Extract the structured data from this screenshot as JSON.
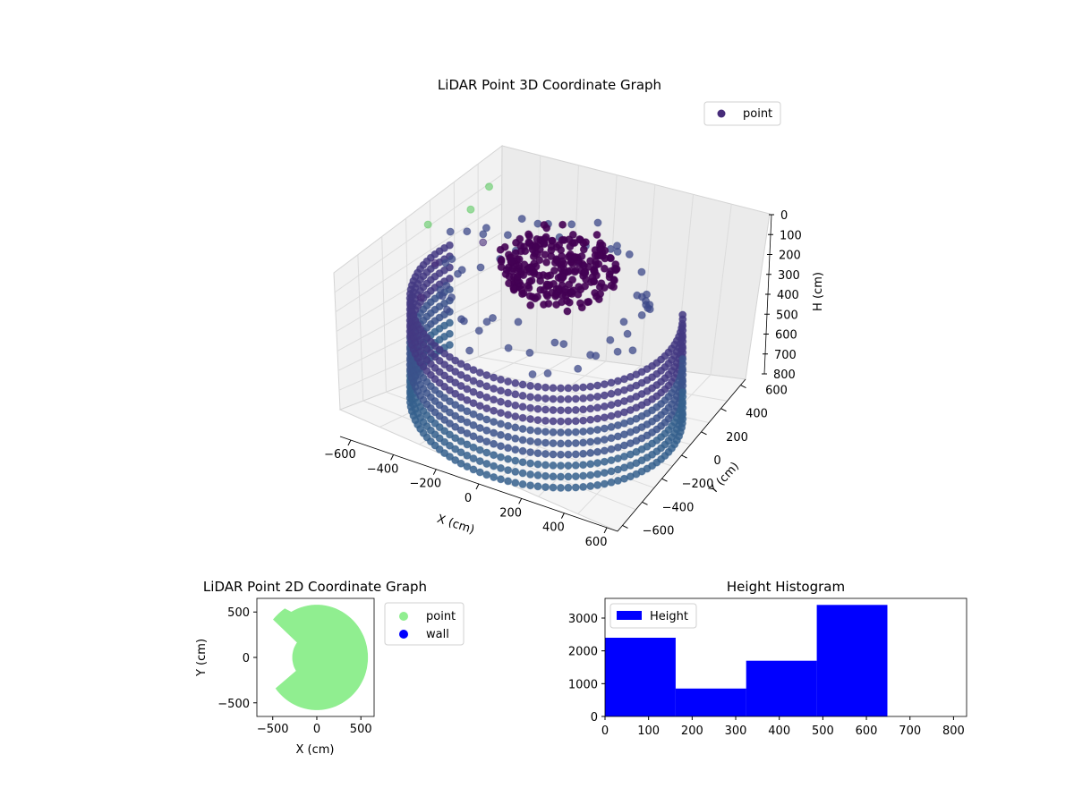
{
  "chart_data": [
    {
      "type": "scatter",
      "projection": "3d",
      "title": "LiDAR Point 3D Coordinate Graph",
      "xlabel": "X (cm)",
      "ylabel": "Y (cm)",
      "zlabel": "H (cm)",
      "x_ticks": [
        "−600",
        "−400",
        "−200",
        "0",
        "200",
        "400",
        "600"
      ],
      "y_ticks": [
        "−600",
        "−400",
        "−200",
        "0",
        "200",
        "400",
        "600"
      ],
      "z_ticks": [
        "0",
        "100",
        "200",
        "300",
        "400",
        "500",
        "600",
        "700",
        "800"
      ],
      "xlim": [
        -650,
        650
      ],
      "ylim": [
        -650,
        650
      ],
      "zlim": [
        0,
        800
      ],
      "z_inverted": true,
      "grid": true,
      "legend": {
        "position": "upper right",
        "entries": [
          {
            "name": "point",
            "color": "#472c7a"
          }
        ]
      },
      "colormap": "viridis",
      "series": [
        {
          "name": "point",
          "groups": [
            {
              "description": "upper cluster",
              "height_range": [
                120,
                230
              ],
              "radius_range": [
                0,
                250
              ],
              "color": "#440154"
            },
            {
              "description": "upper ring",
              "height_range": [
                100,
                350
              ],
              "radius": 450,
              "color": "#3e4a89"
            },
            {
              "description": "lower wall band",
              "height_range": [
                300,
                800
              ],
              "radius": 580,
              "angle_range_deg": [
                -200,
                30
              ],
              "color": "#31688e"
            },
            {
              "description": "stray points",
              "points": [
                [
                  -610,
                  120,
                  180
                ],
                [
                  -540,
                  40,
                  300
                ],
                [
                  -560,
                  -60,
                  420
                ],
                [
                  -470,
                  250,
                  130
                ],
                [
                  -430,
                  350,
                  60
                ],
                [
                  -380,
                  180,
                  220
                ]
              ]
            }
          ]
        }
      ]
    },
    {
      "type": "scatter",
      "title": "LiDAR Point 2D Coordinate Graph",
      "xlabel": "X (cm)",
      "ylabel": "Y (cm)",
      "x_ticks": [
        "−500",
        "0",
        "500"
      ],
      "y_ticks": [
        "−500",
        "0",
        "500"
      ],
      "xlim": [
        -680,
        650
      ],
      "ylim": [
        -650,
        650
      ],
      "legend": {
        "position": "outside right",
        "entries": [
          {
            "name": "point",
            "color": "#90ee90"
          },
          {
            "name": "wall",
            "color": "#0000ff"
          }
        ]
      },
      "series": [
        {
          "name": "point",
          "color": "#90ee90",
          "shape": "circular disc with bite on left side",
          "radius": 580
        },
        {
          "name": "wall",
          "color": "#0000ff",
          "points": []
        }
      ]
    },
    {
      "type": "bar",
      "subtype": "histogram",
      "title": "Height Histogram",
      "x_ticks": [
        "0",
        "100",
        "200",
        "300",
        "400",
        "500",
        "600",
        "700",
        "800"
      ],
      "y_ticks": [
        "0",
        "1000",
        "2000",
        "3000"
      ],
      "xlim": [
        0,
        830
      ],
      "ylim": [
        0,
        3600
      ],
      "bin_edges": [
        0,
        162,
        324,
        486,
        648,
        810
      ],
      "values": [
        2400,
        850,
        1700,
        3400,
        0
      ],
      "color": "#0000ff",
      "legend": {
        "position": "upper left",
        "entries": [
          {
            "name": "Height",
            "color": "#0000ff"
          }
        ]
      }
    }
  ]
}
